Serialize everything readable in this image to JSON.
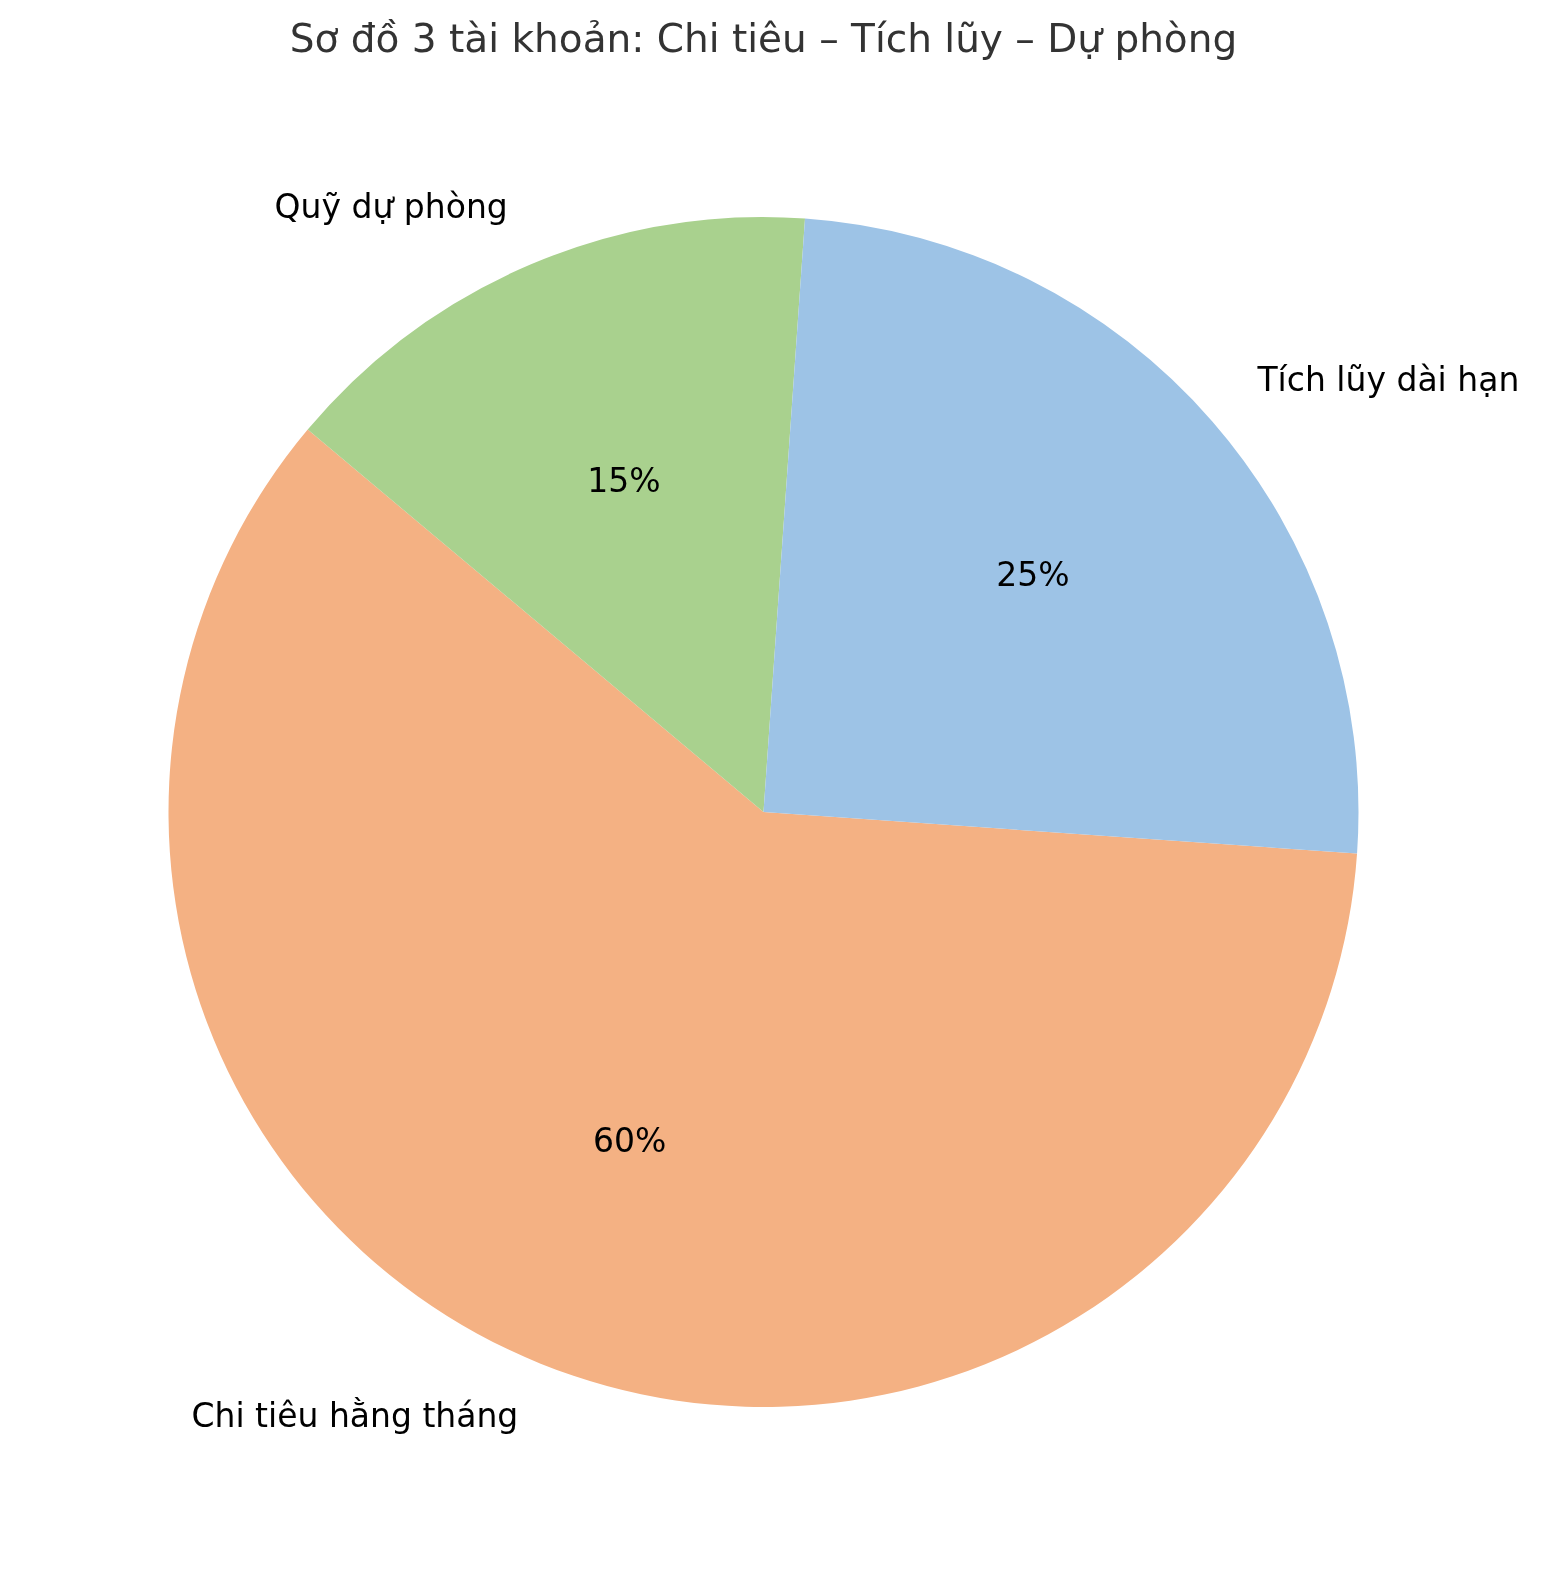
{
  "chart_data": {
    "type": "pie",
    "title": "Sơ đồ 3 tài khoản: Chi tiêu – Tích lũy – Dự phòng",
    "categories": [
      "Chi tiêu hằng tháng",
      "Quỹ dự phòng",
      "Tích lũy dài hạn"
    ],
    "values": [
      60,
      15,
      25
    ],
    "colors": [
      "#f4b183",
      "#a9d18e",
      "#9dc3e6"
    ],
    "value_labels": [
      "60%",
      "15%",
      "25%"
    ],
    "legend": false
  }
}
